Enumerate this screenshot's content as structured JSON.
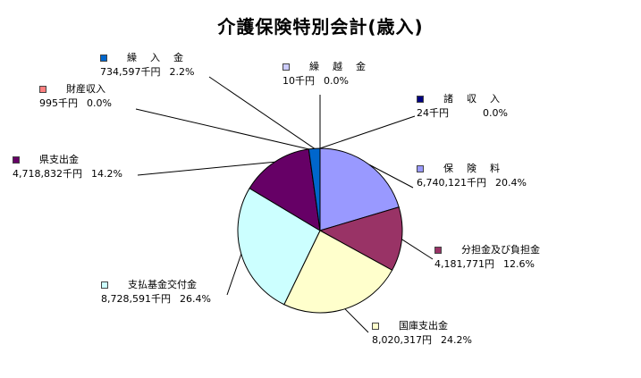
{
  "chart_data": {
    "type": "pie",
    "title": "介護保険特別会計(歳入)",
    "slices": [
      {
        "name": "保　険　料",
        "amount": "6,740,121千円",
        "percent": "20.4%",
        "value": 20.4,
        "color": "#9999ff"
      },
      {
        "name": "分担金及び負担金",
        "amount": "4,181,771円",
        "percent": "12.6%",
        "value": 12.6,
        "color": "#993366"
      },
      {
        "name": "国庫支出金",
        "amount": "8,020,317円",
        "percent": "24.2%",
        "value": 24.2,
        "color": "#ffffcc"
      },
      {
        "name": "支払基金交付金",
        "amount": "8,728,591千円",
        "percent": "26.4%",
        "value": 26.4,
        "color": "#ccffff"
      },
      {
        "name": "県支出金",
        "amount": "4,718,832千円",
        "percent": "14.2%",
        "value": 14.2,
        "color": "#660066"
      },
      {
        "name": "財産収入",
        "amount": "995千円",
        "percent": "0.0%",
        "value": 0.003,
        "color": "#ff8080"
      },
      {
        "name": "繰　入　金",
        "amount": "734,597千円",
        "percent": "2.2%",
        "value": 2.2,
        "color": "#0066cc"
      },
      {
        "name": "繰　越　金",
        "amount": "10千円",
        "percent": "0.0%",
        "value": 0.0001,
        "color": "#ccccff"
      },
      {
        "name": "諸　収　入",
        "amount": "24千円",
        "percent": "0.0%",
        "value": 0.0001,
        "color": "#000080"
      }
    ]
  }
}
